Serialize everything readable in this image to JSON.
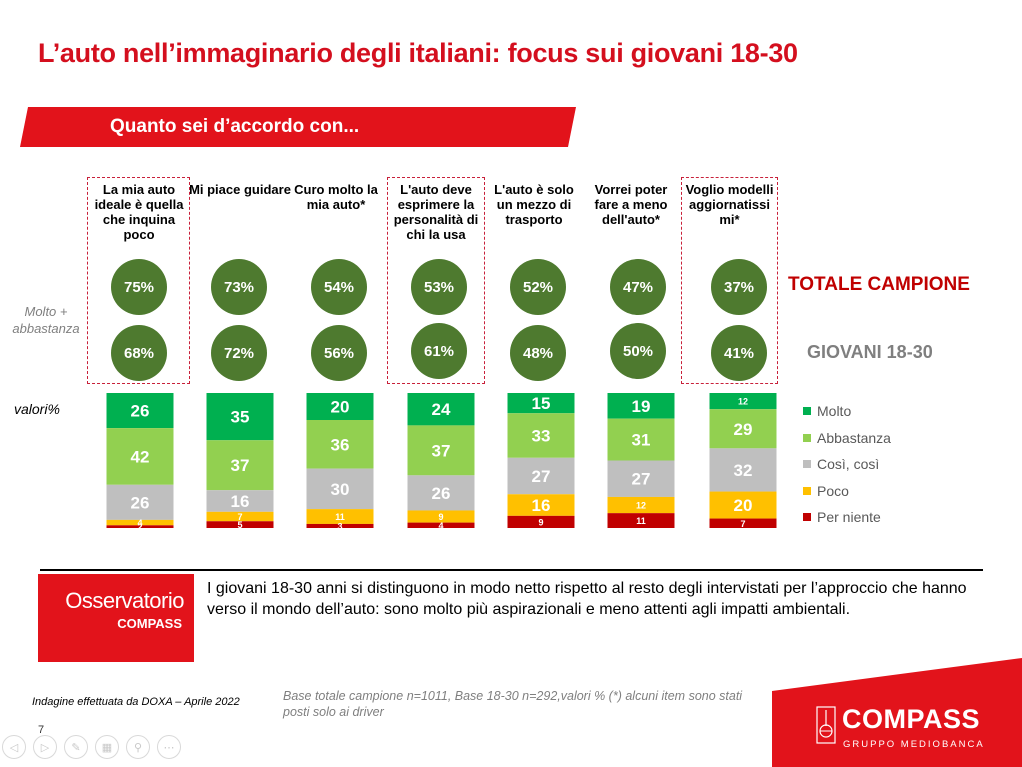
{
  "title": "L’auto nell’immaginario degli italiani: focus sui giovani 18-30",
  "banner": "Quanto sei d’accordo con...",
  "side_labels": {
    "molto_abbastanza": "Molto +\nabbastanza",
    "valori": "valori%"
  },
  "group_labels": {
    "totale": "TOTALE CAMPIONE",
    "giovani": "GIOVANI 18-30"
  },
  "statements": [
    {
      "text": "La mia auto ideale è quella che inquina poco",
      "totale": "75%",
      "giovani": "68%",
      "highlighted": true
    },
    {
      "text": "Mi piace guidare",
      "totale": "73%",
      "giovani": "72%",
      "highlighted": false
    },
    {
      "text": "Curo molto la mia auto*",
      "totale": "54%",
      "giovani": "56%",
      "highlighted": false
    },
    {
      "text": "L'auto deve esprimere la personalità di chi la usa",
      "totale": "53%",
      "giovani": "61%",
      "highlighted": true
    },
    {
      "text": "L'auto è solo un mezzo di trasporto",
      "totale": "52%",
      "giovani": "48%",
      "highlighted": false
    },
    {
      "text": "Vorrei poter fare a meno dell'auto*",
      "totale": "47%",
      "giovani": "50%",
      "highlighted": false
    },
    {
      "text": "Voglio modelli aggiornatissi mi*",
      "totale": "37%",
      "giovani": "41%",
      "highlighted": true
    }
  ],
  "chart_data": {
    "type": "bar",
    "stacked": true,
    "title": "Quanto sei d’accordo con...",
    "xlabel": "",
    "ylabel": "valori%",
    "ylim": [
      0,
      100
    ],
    "categories": [
      "La mia auto ideale è quella che inquina poco",
      "Mi piace guidare",
      "Curo molto la mia auto*",
      "L'auto deve esprimere la personalità di chi la usa",
      "L'auto è solo un mezzo di trasporto",
      "Vorrei poter fare a meno dell'auto*",
      "Voglio modelli aggiornatissimi*"
    ],
    "series": [
      {
        "name": "Molto",
        "color": "#00b050",
        "values": [
          26,
          35,
          20,
          24,
          15,
          19,
          12
        ]
      },
      {
        "name": "Abbastanza",
        "color": "#92d050",
        "values": [
          42,
          37,
          36,
          37,
          33,
          31,
          29
        ]
      },
      {
        "name": "Così, così",
        "color": "#bfbfbf",
        "values": [
          26,
          16,
          30,
          26,
          27,
          27,
          32
        ]
      },
      {
        "name": "Poco",
        "color": "#ffc000",
        "values": [
          4,
          7,
          11,
          9,
          16,
          12,
          20
        ]
      },
      {
        "name": "Per niente",
        "color": "#c00000",
        "values": [
          2,
          5,
          3,
          4,
          9,
          11,
          7
        ]
      }
    ],
    "legend_position": "right",
    "grid": false
  },
  "insight": "I giovani 18-30 anni si distinguono in modo netto rispetto al resto degli intervistati per l’approccio che hanno verso il mondo dell’auto: sono molto più aspirazionali e meno attenti agli impatti ambientali.",
  "observatory": {
    "line1": "Osservatorio",
    "line2": "COMPASS"
  },
  "notes": {
    "survey": "Indagine effettuata da DOXA – Aprile 2022",
    "base": "Base totale campione n=1011, Base 18-30 n=292,valori % (*) alcuni item sono stati posti solo ai driver"
  },
  "page_number": "7",
  "nav_icons": [
    "previous-icon",
    "next-icon",
    "pen-icon",
    "slides-icon",
    "zoom-icon",
    "more-icon"
  ],
  "logo": {
    "name": "COMPASS",
    "sub": "GRUPPO MEDIOBANCA"
  }
}
